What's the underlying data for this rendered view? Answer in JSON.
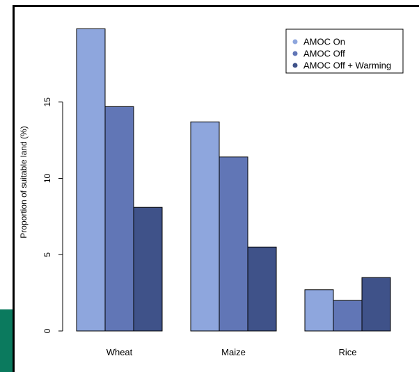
{
  "chart_data": {
    "type": "bar",
    "title": "",
    "xlabel": "",
    "ylabel": "Proportion of suitable land (%)",
    "categories": [
      "Wheat",
      "Maize",
      "Rice"
    ],
    "series": [
      {
        "name": "AMOC On",
        "values": [
          19.8,
          13.7,
          2.7
        ],
        "color": "#8ea6dd"
      },
      {
        "name": "AMOC Off",
        "values": [
          14.7,
          11.4,
          2.0
        ],
        "color": "#6176b6"
      },
      {
        "name": "AMOC Off + Warming",
        "values": [
          8.1,
          5.5,
          3.5
        ],
        "color": "#3f5289"
      }
    ],
    "yticks": [
      "0",
      "5",
      "10",
      "15"
    ],
    "ylim": [
      0,
      20
    ],
    "grid": false,
    "legend_position": "top-right"
  },
  "colors": {
    "side_accent": "#0b7a5e",
    "bar_outline": "#000000"
  }
}
